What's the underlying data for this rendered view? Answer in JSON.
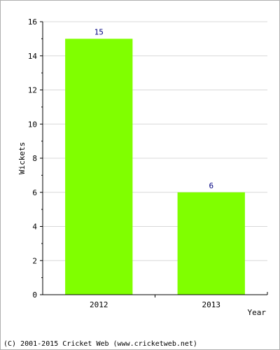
{
  "chart_data": {
    "type": "bar",
    "categories": [
      "2012",
      "2013"
    ],
    "values": [
      15,
      6
    ],
    "data_labels": [
      "15",
      "6"
    ],
    "xlabel": "Year",
    "ylabel": "Wickets",
    "ylim": [
      0,
      16
    ],
    "y_ticks": [
      0,
      2,
      4,
      6,
      8,
      10,
      12,
      14,
      16
    ],
    "y_minor_step": 1,
    "grid": true,
    "bar_color": "#80ff00",
    "label_color": "#000080",
    "grid_color": "#d8d8d8"
  },
  "footer": {
    "credit": "(C) 2001-2015 Cricket Web (www.cricketweb.net)"
  }
}
